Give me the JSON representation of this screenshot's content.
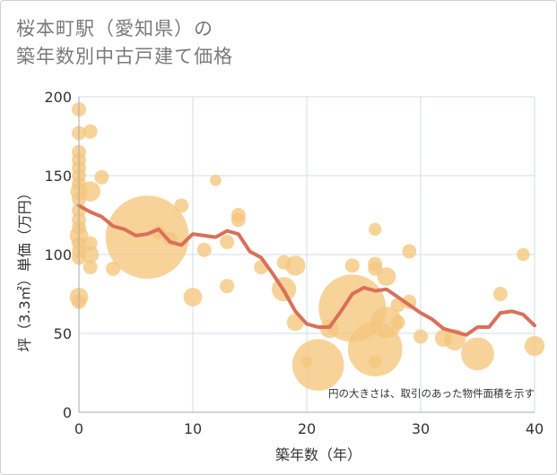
{
  "title": {
    "line1": "桜本町駅（愛知県）の",
    "line2": "築年数別中古戸建て価格"
  },
  "note": "円の大きさは、取引のあった物件面積を示す",
  "colors": {
    "bubble": "#f5c77e",
    "line": "#d9705a",
    "grid": "#d0dde6",
    "axis": "#aaaaaa"
  },
  "chart_data": {
    "type": "scatter",
    "xlabel": "築年数（年）",
    "ylabel": "坪（3.3㎡）単価（万円）",
    "xlim": [
      0,
      40
    ],
    "ylim": [
      0,
      200
    ],
    "x_ticks": [
      0,
      10,
      20,
      30,
      40
    ],
    "y_ticks": [
      0,
      50,
      100,
      150,
      200
    ],
    "grid": true,
    "series": [
      {
        "kind": "bubble",
        "points": [
          {
            "x": 0,
            "y": 192,
            "s": 1
          },
          {
            "x": 0,
            "y": 177,
            "s": 1
          },
          {
            "x": 0,
            "y": 165,
            "s": 1
          },
          {
            "x": 0,
            "y": 160,
            "s": 1
          },
          {
            "x": 0,
            "y": 155,
            "s": 1
          },
          {
            "x": 0,
            "y": 150,
            "s": 1
          },
          {
            "x": 0,
            "y": 145,
            "s": 1
          },
          {
            "x": 0,
            "y": 140,
            "s": 1.2
          },
          {
            "x": 0,
            "y": 135,
            "s": 1
          },
          {
            "x": 0,
            "y": 128,
            "s": 1
          },
          {
            "x": 0,
            "y": 122,
            "s": 1
          },
          {
            "x": 0,
            "y": 117,
            "s": 1
          },
          {
            "x": 0,
            "y": 112,
            "s": 1.3
          },
          {
            "x": 0,
            "y": 107,
            "s": 1
          },
          {
            "x": 0,
            "y": 102,
            "s": 1
          },
          {
            "x": 0,
            "y": 98,
            "s": 1
          },
          {
            "x": 0,
            "y": 73,
            "s": 1.3
          },
          {
            "x": 0,
            "y": 70,
            "s": 1
          },
          {
            "x": 1,
            "y": 178,
            "s": 1
          },
          {
            "x": 1,
            "y": 140,
            "s": 1.4
          },
          {
            "x": 1,
            "y": 107,
            "s": 1
          },
          {
            "x": 1,
            "y": 100,
            "s": 1.2
          },
          {
            "x": 1,
            "y": 92,
            "s": 1
          },
          {
            "x": 2,
            "y": 149,
            "s": 1
          },
          {
            "x": 3,
            "y": 91,
            "s": 1
          },
          {
            "x": 6,
            "y": 111,
            "s": 5.8
          },
          {
            "x": 7,
            "y": 114,
            "s": 1
          },
          {
            "x": 8,
            "y": 110,
            "s": 1
          },
          {
            "x": 9,
            "y": 131,
            "s": 1
          },
          {
            "x": 10,
            "y": 73,
            "s": 1.3
          },
          {
            "x": 11,
            "y": 103,
            "s": 1
          },
          {
            "x": 12,
            "y": 147,
            "s": 0.8
          },
          {
            "x": 13,
            "y": 108,
            "s": 1
          },
          {
            "x": 13,
            "y": 80,
            "s": 1
          },
          {
            "x": 14,
            "y": 125,
            "s": 1
          },
          {
            "x": 14,
            "y": 122,
            "s": 1
          },
          {
            "x": 16,
            "y": 92,
            "s": 1
          },
          {
            "x": 18,
            "y": 95,
            "s": 1
          },
          {
            "x": 18,
            "y": 78,
            "s": 1.7
          },
          {
            "x": 19,
            "y": 93,
            "s": 1.4
          },
          {
            "x": 19,
            "y": 57,
            "s": 1.2
          },
          {
            "x": 20,
            "y": 32,
            "s": 0.8
          },
          {
            "x": 21,
            "y": 30,
            "s": 3.6
          },
          {
            "x": 22,
            "y": 53,
            "s": 1.3
          },
          {
            "x": 24,
            "y": 93,
            "s": 1
          },
          {
            "x": 24,
            "y": 66,
            "s": 4.7
          },
          {
            "x": 26,
            "y": 116,
            "s": 0.9
          },
          {
            "x": 26,
            "y": 94,
            "s": 1
          },
          {
            "x": 26,
            "y": 91,
            "s": 1
          },
          {
            "x": 26,
            "y": 40,
            "s": 3.8
          },
          {
            "x": 26,
            "y": 32,
            "s": 0.9
          },
          {
            "x": 27,
            "y": 86,
            "s": 1.3
          },
          {
            "x": 27,
            "y": 57,
            "s": 2.2
          },
          {
            "x": 28,
            "y": 68,
            "s": 1
          },
          {
            "x": 28,
            "y": 57,
            "s": 1
          },
          {
            "x": 29,
            "y": 102,
            "s": 1
          },
          {
            "x": 29,
            "y": 70,
            "s": 1
          },
          {
            "x": 30,
            "y": 48,
            "s": 1
          },
          {
            "x": 32,
            "y": 47,
            "s": 1.2
          },
          {
            "x": 33,
            "y": 46,
            "s": 1.5
          },
          {
            "x": 35,
            "y": 37,
            "s": 2.3
          },
          {
            "x": 37,
            "y": 75,
            "s": 1
          },
          {
            "x": 39,
            "y": 100,
            "s": 0.9
          },
          {
            "x": 40,
            "y": 42,
            "s": 1.4
          }
        ]
      },
      {
        "kind": "line",
        "x": [
          0,
          1,
          2,
          3,
          4,
          5,
          6,
          7,
          8,
          9,
          10,
          11,
          12,
          13,
          14,
          15,
          16,
          17,
          18,
          19,
          20,
          21,
          22,
          23,
          24,
          25,
          26,
          27,
          28,
          29,
          30,
          31,
          32,
          33,
          34,
          35,
          36,
          37,
          38,
          39,
          40
        ],
        "y": [
          131,
          127,
          124,
          118,
          116,
          112,
          113,
          116,
          108,
          106,
          113,
          112,
          111,
          115,
          113,
          102,
          98,
          88,
          77,
          64,
          56,
          54,
          54,
          64,
          75,
          79,
          77,
          78,
          73,
          68,
          63,
          59,
          53,
          51,
          49,
          54,
          54,
          63,
          64,
          62,
          55
        ]
      }
    ]
  }
}
